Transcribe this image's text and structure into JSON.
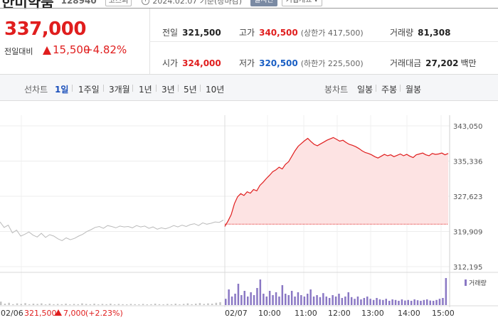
{
  "header": {
    "stock_name": "한미약품",
    "stock_code": "128940",
    "market": "코스피",
    "as_of": "2024.02.07 기준(장마감)",
    "realtime_label": "실시간",
    "company_info_label": "기업개요 ▾"
  },
  "quote": {
    "price": "337,000",
    "change_label": "전일대비",
    "change_amount": "15,500",
    "change_pct": "+4.82%",
    "prev_close_label": "전일",
    "prev_close": "321,500",
    "high_label": "고가",
    "high": "340,500",
    "upper_limit": "(상한가 417,500)",
    "volume_label": "거래량",
    "volume": "81,308",
    "open_label": "시가",
    "open": "324,000",
    "low_label": "저가",
    "low": "320,500",
    "lower_limit": "(하한가 225,500)",
    "value_label": "거래대금",
    "value": "27,202",
    "value_unit": "백만"
  },
  "periods": {
    "line_label": "선차트",
    "line_items": [
      "1일",
      "1주일",
      "3개월",
      "1년",
      "3년",
      "5년",
      "10년"
    ],
    "active_index": 0,
    "candle_label": "봉차트",
    "candle_items": [
      "일봉",
      "주봉",
      "월봉"
    ]
  },
  "colors": {
    "up": "#e01e1e",
    "down": "#1a5fc4",
    "prev_day_line": "#bbbbbb",
    "volume_prev": "#c4c4c4",
    "volume_today": "#8a78c4"
  },
  "chart_data": {
    "type": "line",
    "y_ticks": [
      "343,050",
      "335,336",
      "327,623",
      "319,909",
      "312,195"
    ],
    "y_range": [
      312195,
      343050
    ],
    "x_ticks": [
      "02/06",
      "02/07",
      "10:00",
      "11:00",
      "12:00",
      "13:00",
      "14:00",
      "15:00"
    ],
    "baseline": 321500,
    "volume_legend": "거래량",
    "footer_date": "02/06",
    "footer_close": "321,500",
    "footer_change": "7,000",
    "footer_pct": "(+2.23%)",
    "prev_day": [
      322000,
      320800,
      321300,
      319600,
      320200,
      318900,
      319300,
      319800,
      319100,
      318700,
      319500,
      318600,
      319200,
      318900,
      318300,
      317900,
      318500,
      318100,
      318400,
      318900,
      319300,
      319900,
      320300,
      320800,
      321000,
      320600,
      321200,
      321000,
      320700,
      321100,
      320900,
      321000,
      320700,
      321200,
      320900,
      321100,
      320600,
      320900,
      320400,
      320700,
      320500,
      320800,
      321200,
      320900,
      321300,
      321000,
      321400,
      321600,
      321200,
      321800,
      321500,
      321700,
      322000,
      321900,
      322400
    ],
    "today": [
      321000,
      322200,
      323600,
      326000,
      327500,
      328200,
      327800,
      328600,
      328300,
      329100,
      328800,
      330000,
      330700,
      331500,
      332200,
      333000,
      333400,
      334000,
      333600,
      334600,
      335200,
      336400,
      337600,
      338600,
      339200,
      339800,
      340300,
      339600,
      339000,
      338700,
      339100,
      339500,
      339900,
      340200,
      340500,
      340100,
      339700,
      339900,
      339400,
      339000,
      338800,
      338500,
      338100,
      337600,
      337200,
      337000,
      336700,
      336300,
      336000,
      336400,
      336800,
      336500,
      336700,
      336300,
      336600,
      336900,
      336500,
      336800,
      336400,
      336100,
      336700,
      336900,
      337100,
      336700,
      336500,
      337000,
      336800,
      336900,
      337100,
      336700,
      337000
    ],
    "volume_prev": [
      0.12,
      0.05,
      0.08,
      0.03,
      0.06,
      0.04,
      0.07,
      0.03,
      0.05,
      0.04,
      0.06,
      0.02,
      0.05,
      0.03,
      0.04,
      0.03,
      0.05,
      0.02,
      0.04,
      0.03,
      0.06,
      0.04,
      0.03,
      0.05,
      0.02,
      0.04,
      0.03,
      0.05,
      0.02,
      0.04,
      0.03,
      0.02,
      0.04,
      0.03,
      0.02,
      0.04,
      0.02,
      0.03,
      0.05,
      0.03,
      0.02,
      0.04,
      0.03,
      0.05,
      0.02,
      0.04,
      0.06,
      0.03,
      0.05,
      0.07,
      0.04,
      0.06,
      0.05,
      0.08,
      0.1
    ],
    "volume_today": [
      0.22,
      0.55,
      0.3,
      0.4,
      0.75,
      0.35,
      0.5,
      0.3,
      0.45,
      0.35,
      0.6,
      0.9,
      0.4,
      0.3,
      0.5,
      0.35,
      0.45,
      0.3,
      0.7,
      0.4,
      0.35,
      0.5,
      0.3,
      0.45,
      0.35,
      0.3,
      0.4,
      0.55,
      0.3,
      0.35,
      0.28,
      0.42,
      0.3,
      0.25,
      0.35,
      0.3,
      0.4,
      0.25,
      0.3,
      0.45,
      0.28,
      0.22,
      0.3,
      0.2,
      0.25,
      0.3,
      0.22,
      0.18,
      0.25,
      0.2,
      0.18,
      0.22,
      0.15,
      0.2,
      0.18,
      0.15,
      0.2,
      0.16,
      0.18,
      0.15,
      0.2,
      0.17,
      0.15,
      0.18,
      0.2,
      0.16,
      0.15,
      0.18,
      0.22,
      0.25,
      0.95
    ]
  }
}
